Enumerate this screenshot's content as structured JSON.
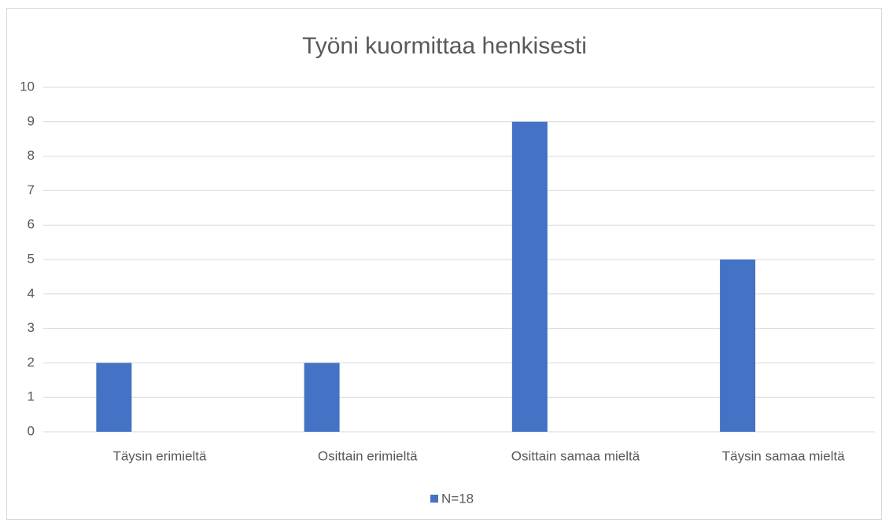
{
  "chart_data": {
    "type": "bar",
    "title": "Työni kuormittaa henkisesti",
    "categories": [
      "Täysin erimieltä",
      "Osittain erimieltä",
      "Osittain samaa mieltä",
      "Täysin samaa mieltä"
    ],
    "series": [
      {
        "name": "N=18",
        "color": "#4472c4",
        "values": [
          2,
          2,
          9,
          5
        ]
      }
    ],
    "ylim": [
      0,
      10
    ],
    "yticks": [
      0,
      1,
      2,
      3,
      4,
      5,
      6,
      7,
      8,
      9,
      10
    ],
    "grid": true,
    "legend": "bottom"
  }
}
